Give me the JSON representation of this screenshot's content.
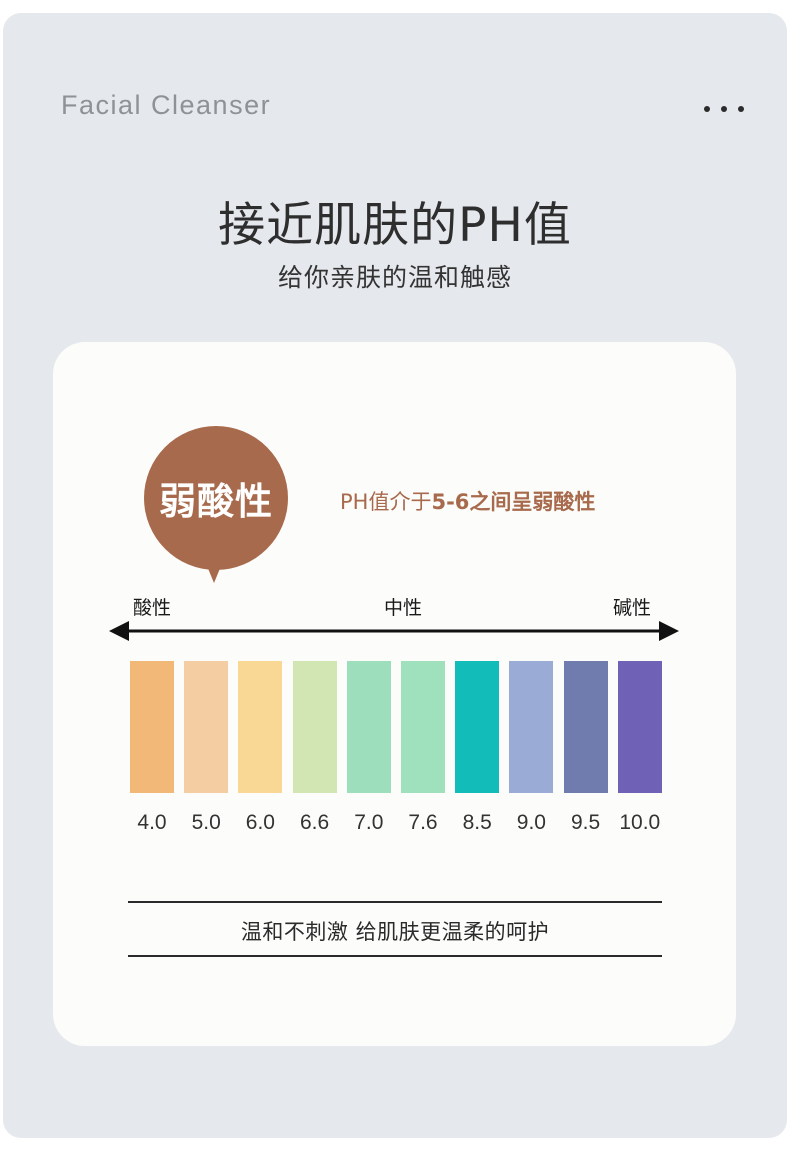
{
  "header": {
    "brand": "Facial Cleanser",
    "title": "接近肌肤的PH值",
    "subtitle": "给你亲肤的温和触感"
  },
  "card": {
    "bubble_text": "弱酸性",
    "note_prefix": "PH值介于",
    "note_highlight": "5-6之间呈弱酸性",
    "labels": {
      "left": "酸性",
      "middle": "中性",
      "right": "碱性"
    },
    "tagline": "温和不刺激 给肌肤更温柔的呵护"
  },
  "scale": [
    {
      "value": "4.0",
      "color": "#f2b877"
    },
    {
      "value": "5.0",
      "color": "#f5cda2"
    },
    {
      "value": "6.0",
      "color": "#f8d894"
    },
    {
      "value": "6.6",
      "color": "#d1e6b3"
    },
    {
      "value": "7.0",
      "color": "#9ddebc"
    },
    {
      "value": "7.6",
      "color": "#9fe0bd"
    },
    {
      "value": "8.5",
      "color": "#12bdb9"
    },
    {
      "value": "9.0",
      "color": "#9aacd5"
    },
    {
      "value": "9.5",
      "color": "#6f7cad"
    },
    {
      "value": "10.0",
      "color": "#6f61b5"
    }
  ],
  "colors": {
    "accent": "#a86a4c",
    "background": "#e5e8ed",
    "card": "#fcfcfa"
  }
}
